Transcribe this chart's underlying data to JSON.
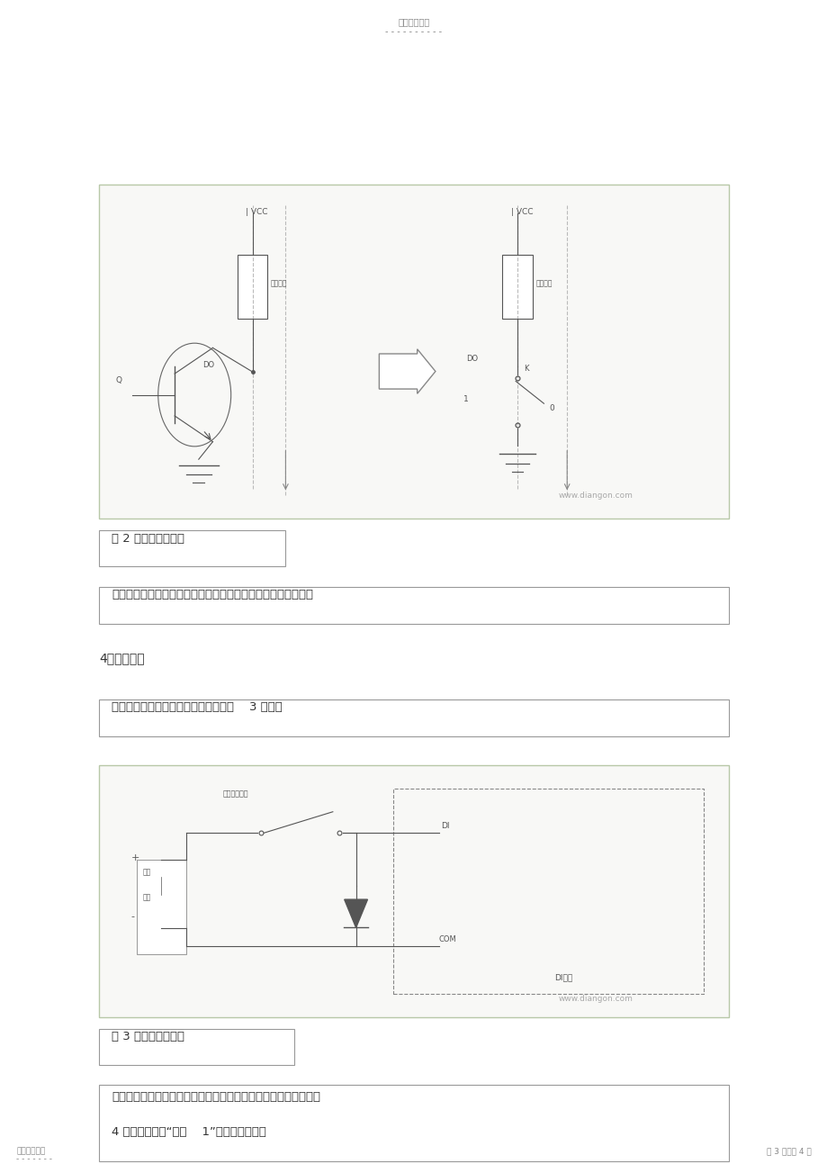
{
  "bg_color": "#ffffff",
  "header_text": "精选学习资料",
  "header_dots": "- - - - - - - - - -",
  "footer_left": "名师归纳总结",
  "footer_left_dots": "- - - - - - -",
  "footer_right": "第 3 页，共 4 页",
  "fig1_watermark": "www.diangon.com",
  "fig1_caption": "图 2 漏极输出示意图",
  "text1": "源极输入设备的信号源（漏极输出）只能提供到地的驱动能力。",
  "section4_title": "4．漏极输入",
  "text2": "漏极输入用于连接源级输出设备，如图    3 所示。",
  "fig2_watermark": "www.diangon.com",
  "fig2_caption": "图 3 漏极输入示意图",
  "text3_line1": "源极输出设备提供电源或正电压，等效于连接到电源的开关，如图",
  "text3_line2": "4 所示。当输出“逻辑    1”时，开关导通。",
  "font_size_body": 9.5,
  "font_size_caption": 9.5,
  "font_size_header": 7,
  "font_size_footer": 6.5,
  "text_color": "#333333",
  "border_color": "#999999",
  "watermark_color": "#aaaaaa"
}
